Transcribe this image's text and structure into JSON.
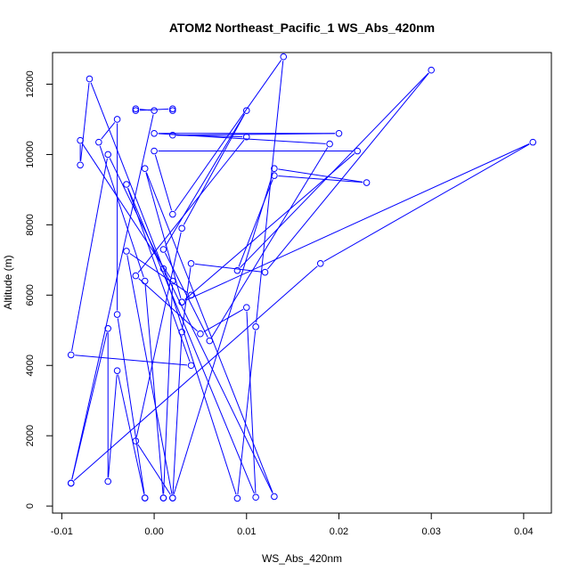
{
  "chart_data": {
    "type": "line",
    "title": "ATOM2 Northeast_Pacific_1 WS_Abs_420nm",
    "xlabel": "WS_Abs_420nm",
    "ylabel": "Altitude (m)",
    "xlim": [
      -0.011,
      0.043
    ],
    "ylim": [
      -200,
      12900
    ],
    "x_ticks": [
      -0.01,
      0.0,
      0.01,
      0.02,
      0.03,
      0.04
    ],
    "x_tick_labels": [
      "-0.01",
      "0.00",
      "0.01",
      "0.02",
      "0.03",
      "0.04"
    ],
    "y_ticks": [
      0,
      2000,
      4000,
      6000,
      8000,
      10000,
      12000
    ],
    "y_tick_labels": [
      "0",
      "2000",
      "4000",
      "6000",
      "8000",
      "10000",
      "12000"
    ],
    "grid": false,
    "series": [
      {
        "color": "#0000ff",
        "marker": "open-circle",
        "points": [
          [
            -0.009,
            650
          ],
          [
            -0.005,
            5050
          ],
          [
            -0.005,
            700
          ],
          [
            -0.004,
            3850
          ],
          [
            -0.001,
            230
          ],
          [
            -0.001,
            230
          ],
          [
            -0.004,
            5450
          ],
          [
            -0.004,
            11000
          ],
          [
            -0.006,
            10350
          ],
          [
            -0.001,
            6400
          ],
          [
            0.001,
            230
          ],
          [
            0.001,
            230
          ],
          [
            0.002,
            6400
          ],
          [
            -0.008,
            10400
          ],
          [
            -0.008,
            9700
          ],
          [
            -0.007,
            12150
          ],
          [
            0.001,
            6750
          ],
          [
            0.009,
            220
          ],
          [
            0.011,
            5100
          ],
          [
            0.014,
            12780
          ],
          [
            0.002,
            8300
          ],
          [
            0.0,
            10100
          ],
          [
            0.022,
            10100
          ],
          [
            0.003,
            5800
          ],
          [
            0.004,
            6000
          ],
          [
            -0.003,
            7250
          ],
          [
            0.002,
            230
          ],
          [
            0.003,
            4950
          ],
          [
            0.004,
            6900
          ],
          [
            0.012,
            6650
          ],
          [
            0.03,
            12400
          ],
          [
            0.009,
            6700
          ],
          [
            0.013,
            9400
          ],
          [
            0.023,
            9200
          ],
          [
            0.013,
            9600
          ],
          [
            0.002,
            230
          ],
          [
            -0.002,
            1850
          ],
          [
            0.003,
            7900
          ],
          [
            0.01,
            11250
          ],
          [
            0.001,
            7300
          ],
          [
            0.006,
            4700
          ],
          [
            0.019,
            10300
          ],
          [
            0.0,
            10600
          ],
          [
            0.02,
            10600
          ],
          [
            0.002,
            10550
          ],
          [
            0.01,
            10500
          ],
          [
            -0.002,
            6550
          ],
          [
            0.005,
            4900
          ],
          [
            0.01,
            5650
          ],
          [
            0.011,
            250
          ],
          [
            -0.003,
            9150
          ],
          [
            0.004,
            4000
          ],
          [
            -0.009,
            4300
          ],
          [
            -0.005,
            10000
          ],
          [
            0.013,
            270
          ],
          [
            -0.001,
            9600
          ],
          [
            0.003,
            5800
          ],
          [
            0.041,
            10350
          ],
          [
            0.018,
            6900
          ],
          [
            -0.009,
            650
          ],
          [
            0.0,
            11250
          ],
          [
            -0.002,
            11300
          ],
          [
            -0.002,
            11250
          ],
          [
            0.002,
            11300
          ],
          [
            0.002,
            11250
          ]
        ]
      }
    ]
  }
}
